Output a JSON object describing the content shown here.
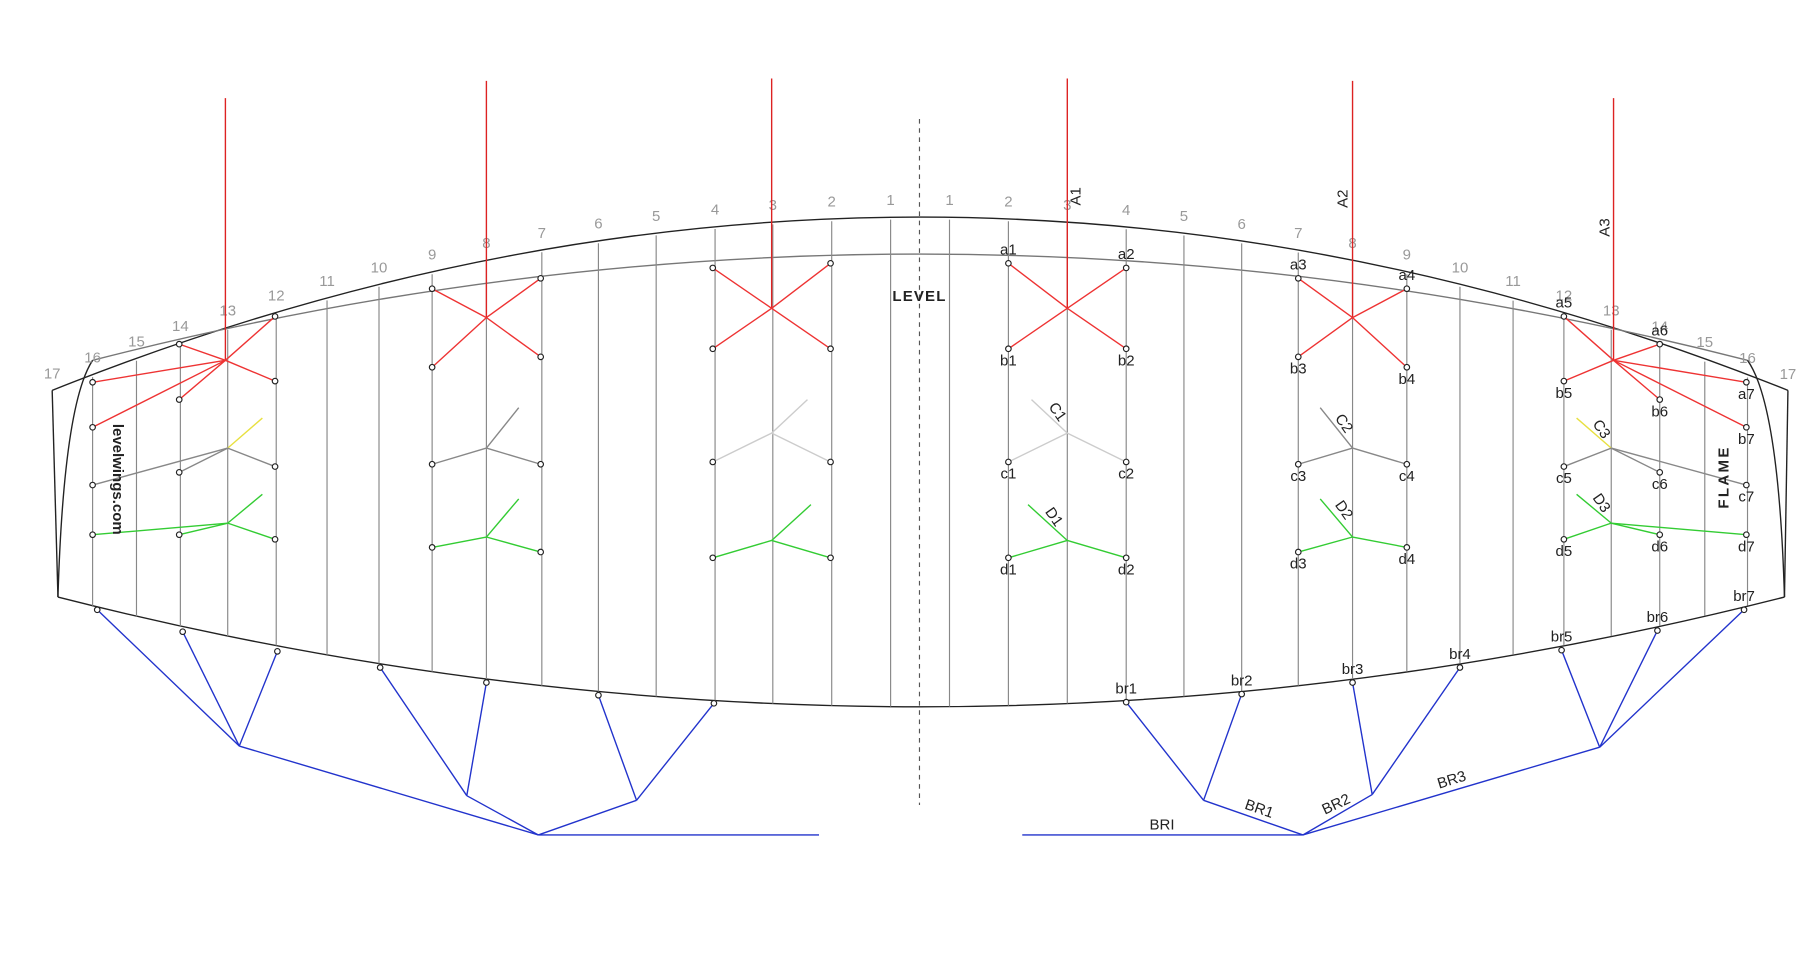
{
  "rib_numbers_left": [
    17,
    16,
    15,
    14,
    13,
    12,
    11,
    10,
    9,
    8,
    7,
    6,
    5,
    4,
    3,
    2,
    1
  ],
  "rib_numbers_right": [
    1,
    2,
    3,
    4,
    5,
    6,
    7,
    8,
    9,
    10,
    11,
    12,
    13,
    14,
    15,
    16,
    17
  ],
  "branding": {
    "logo": "LEVEL",
    "website": "levelwings.com",
    "model": "FLAME"
  },
  "point_labels": {
    "a": [
      "a1",
      "a2",
      "a3",
      "a4",
      "a5",
      "a6",
      "a7"
    ],
    "b": [
      "b1",
      "b2",
      "b3",
      "b4",
      "b5",
      "b6",
      "b7"
    ],
    "c": [
      "c1",
      "c2",
      "c3",
      "c4",
      "c5",
      "c6",
      "c7"
    ],
    "d": [
      "d1",
      "d2",
      "d3",
      "d4",
      "d5",
      "d6",
      "d7"
    ],
    "br": [
      "br1",
      "br2",
      "br3",
      "br4",
      "br5",
      "br6",
      "br7"
    ]
  },
  "line_labels": {
    "A": [
      "A1",
      "A2",
      "A3"
    ],
    "C": [
      "C1",
      "C2",
      "C3"
    ],
    "D": [
      "D1",
      "D2",
      "D3"
    ],
    "BR": [
      "BRI",
      "BR1",
      "BR2",
      "BR3"
    ]
  }
}
